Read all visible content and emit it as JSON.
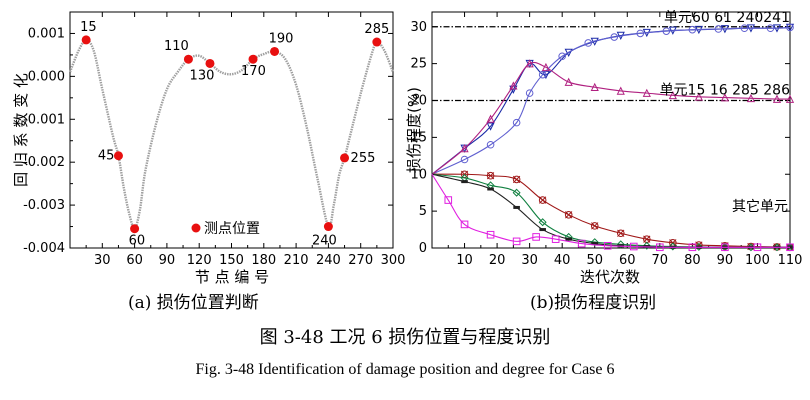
{
  "captions": {
    "cn": "图 3-48  工况 6 损伤位置与程度识别",
    "en": "Fig. 3-48 Identification of damage position and degree for Case 6"
  },
  "chart_data": [
    {
      "type": "line",
      "subtitle": "(a)  损伤位置判断",
      "xlabel": "节 点 编  号",
      "ylabel": "回 归 系  数 变  化",
      "xlim": [
        0,
        300
      ],
      "ylim": [
        -0.004,
        0.0015
      ],
      "x_ticks": [
        "30",
        "60",
        "90",
        "120",
        "150",
        "180",
        "210",
        "240",
        "270",
        "300"
      ],
      "y_ticks": [
        "0.001",
        "0.000",
        "-0.001",
        "-0.002",
        "-0.003",
        "-0.004"
      ],
      "curve": {
        "x": [
          0,
          8,
          15,
          22,
          30,
          40,
          45,
          50,
          55,
          60,
          65,
          70,
          80,
          90,
          100,
          110,
          120,
          130,
          140,
          150,
          160,
          170,
          180,
          190,
          200,
          210,
          220,
          230,
          240,
          245,
          250,
          255,
          260,
          270,
          280,
          285,
          292,
          300
        ],
        "y": [
          0.0001,
          0.0006,
          0.00085,
          0.0006,
          -0.0003,
          -0.0014,
          -0.00185,
          -0.0026,
          -0.0032,
          -0.00355,
          -0.0031,
          -0.0022,
          -0.0011,
          -0.0003,
          0.0001,
          0.0004,
          0.00048,
          0.0003,
          0.0001,
          5e-05,
          0.00015,
          0.0004,
          0.00052,
          0.00058,
          0.0004,
          -0.0002,
          -0.0012,
          -0.0024,
          -0.0035,
          -0.003,
          -0.0023,
          -0.0019,
          -0.0014,
          -0.0004,
          0.0005,
          0.0008,
          0.0006,
          0.0001
        ]
      },
      "points": [
        {
          "node": "15",
          "x": 15,
          "y": 0.00085
        },
        {
          "node": "45",
          "x": 45,
          "y": -0.00185
        },
        {
          "node": "60",
          "x": 60,
          "y": -0.00355
        },
        {
          "node": "110",
          "x": 110,
          "y": 0.0004
        },
        {
          "node": "130",
          "x": 130,
          "y": 0.0003
        },
        {
          "node": "170",
          "x": 170,
          "y": 0.0004
        },
        {
          "node": "190",
          "x": 190,
          "y": 0.00058
        },
        {
          "node": "240",
          "x": 240,
          "y": -0.0035
        },
        {
          "node": "255",
          "x": 255,
          "y": -0.0019
        },
        {
          "node": "285",
          "x": 285,
          "y": 0.0008
        }
      ],
      "legend": {
        "label": "测点位置",
        "color": "#e81010"
      },
      "colors": {
        "curve": "#a0a0a0",
        "points": "#e81010"
      }
    },
    {
      "type": "line",
      "subtitle": "(b)损伤程度识别",
      "xlabel": "迭代次数",
      "ylabel": "损伤程度(%)",
      "xlim": [
        0,
        110
      ],
      "ylim": [
        0,
        32
      ],
      "x_ticks": [
        "10",
        "20",
        "30",
        "40",
        "50",
        "60",
        "70",
        "80",
        "90",
        "100",
        "110"
      ],
      "y_ticks": [
        "0",
        "5",
        "10",
        "15",
        "20",
        "25",
        "30"
      ],
      "reference_lines": [
        30,
        20
      ],
      "annotations": [
        "单元60 61 240241",
        "单元15 16 285 286",
        "其它单元"
      ],
      "series": [
        {
          "color": "#1a2aa8",
          "marker": "triangle-down",
          "x": [
            0,
            10,
            18,
            25,
            30,
            35,
            42,
            50,
            58,
            66,
            74,
            82,
            90,
            98,
            106,
            110
          ],
          "y": [
            10,
            13.5,
            16.5,
            21.5,
            25,
            23.5,
            26.5,
            28,
            28.8,
            29.2,
            29.5,
            29.6,
            29.7,
            29.8,
            29.8,
            29.9
          ]
        },
        {
          "color": "#6060d0",
          "marker": "circle",
          "x": [
            0,
            10,
            18,
            26,
            30,
            34,
            40,
            48,
            56,
            64,
            72,
            80,
            88,
            96,
            104,
            110
          ],
          "y": [
            10,
            12,
            14,
            17,
            21,
            23.5,
            26,
            27.8,
            28.6,
            29.1,
            29.4,
            29.6,
            29.7,
            29.8,
            29.8,
            29.9
          ]
        },
        {
          "color": "#b02080",
          "marker": "triangle-up",
          "x": [
            0,
            10,
            18,
            25,
            30,
            35,
            42,
            50,
            58,
            66,
            74,
            82,
            90,
            98,
            106,
            110
          ],
          "y": [
            10,
            13.5,
            17.5,
            22,
            25,
            24.5,
            22.5,
            21.8,
            21.3,
            21,
            20.7,
            20.5,
            20.4,
            20.3,
            20.2,
            20.2
          ]
        },
        {
          "color": "#a01818",
          "marker": "x-circle",
          "x": [
            0,
            10,
            18,
            26,
            34,
            42,
            50,
            58,
            66,
            74,
            82,
            90,
            98,
            106,
            110
          ],
          "y": [
            10,
            10,
            9.8,
            9.3,
            6.5,
            4.5,
            3,
            2,
            1.2,
            0.7,
            0.4,
            0.3,
            0.2,
            0.15,
            0.1
          ]
        },
        {
          "color": "#108040",
          "marker": "diamond",
          "x": [
            0,
            10,
            18,
            26,
            34,
            42,
            50,
            58,
            66,
            74,
            82,
            90,
            98,
            106,
            110
          ],
          "y": [
            10,
            9.5,
            8.5,
            7.5,
            3.5,
            1.5,
            0.8,
            0.5,
            0.3,
            0.2,
            0.15,
            0.1,
            0.1,
            0.1,
            0.1
          ]
        },
        {
          "color": "#202020",
          "marker": "bar",
          "x": [
            0,
            10,
            18,
            26,
            34,
            42,
            50,
            58,
            66,
            74,
            82,
            90,
            98,
            106,
            110
          ],
          "y": [
            10,
            9,
            8,
            5.5,
            2.5,
            1.2,
            0.6,
            0.3,
            0.2,
            0.1,
            0.1,
            0.1,
            0.1,
            0.1,
            0.1
          ]
        },
        {
          "color": "#e020e0",
          "marker": "square",
          "x": [
            0,
            5,
            10,
            18,
            26,
            32,
            38,
            46,
            54,
            62,
            70,
            80,
            90,
            100,
            110
          ],
          "y": [
            10,
            6.5,
            3.2,
            1.8,
            0.9,
            1.5,
            1.2,
            0.6,
            0.3,
            0.2,
            0.1,
            0.1,
            0.1,
            0.1,
            0.1
          ]
        }
      ]
    }
  ]
}
